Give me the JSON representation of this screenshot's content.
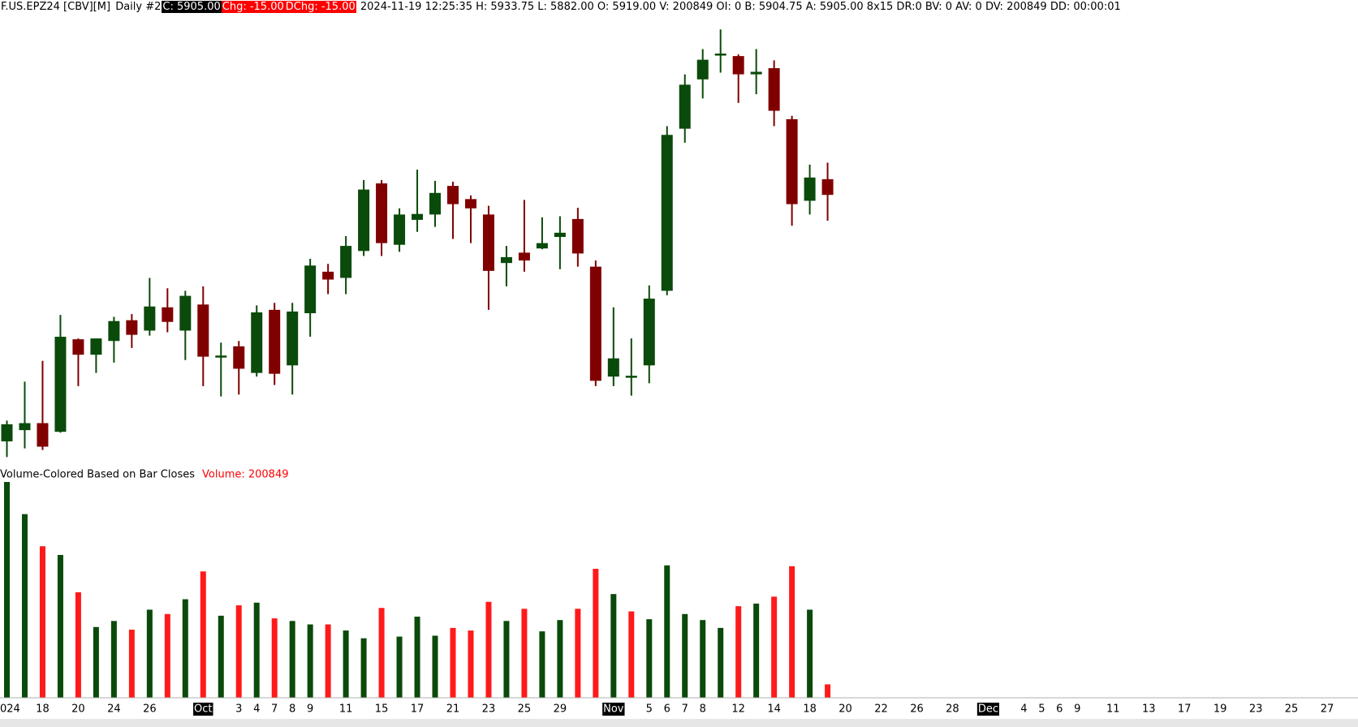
{
  "header": {
    "symbol": "F.US.EPZ24 [CBV][M]",
    "period": "Daily #2",
    "close": "C: 5905.00",
    "change": "Chg: -15.00",
    "dchange": "DChg: -15.00",
    "info": "2024-11-19 12:25:35 H: 5933.75 L: 5882.00 O: 5919.00 V: 200849 OI: 0 B: 5904.75 A: 5905.00 8x15 DR:0 BV: 0 AV: 0 DV: 200849 DD: 00:00:01"
  },
  "chart_data": [
    {
      "type": "candlestick",
      "categories": [
        "024",
        null,
        "18",
        null,
        "20",
        null,
        "24",
        null,
        "26",
        null,
        null,
        "Oct",
        null,
        "3",
        "4",
        "7",
        "8",
        "9",
        null,
        "11",
        null,
        "15",
        null,
        "17",
        null,
        "21",
        null,
        "23",
        null,
        "25",
        null,
        "29",
        null,
        null,
        "Nov",
        null,
        "5",
        "6",
        "7",
        "8",
        null,
        "12",
        null,
        "14",
        null,
        "18",
        null,
        "20",
        null,
        "22",
        null,
        "26",
        null,
        "28",
        null,
        "Dec",
        null,
        "4",
        "5",
        "6",
        "9",
        null,
        "11",
        null,
        "13",
        null,
        "17",
        null,
        "19",
        null,
        "23",
        null,
        "25",
        null,
        "27"
      ],
      "open": [
        5685.25,
        5695.25,
        5701.5,
        5693.75,
        5776.25,
        5762.5,
        5774.75,
        5793.25,
        5784,
        5804.75,
        5784,
        5807.25,
        5761.5,
        5770,
        5746.25,
        5802.5,
        5753,
        5799.5,
        5836.5,
        5831,
        5855,
        5915.25,
        5860.5,
        5882.75,
        5887.5,
        5913,
        5901.25,
        5887.5,
        5844.25,
        5853.5,
        5857.25,
        5867.5,
        5883.5,
        5841,
        5743,
        5742.25,
        5753,
        5819.5,
        5964,
        6008,
        6029.5,
        6028.75,
        6012.5,
        6018,
        5972.5,
        5899.75,
        5919,
        null,
        null,
        null,
        null,
        null,
        null,
        null,
        null,
        null,
        null,
        null,
        null,
        null,
        null,
        null,
        null,
        null,
        null,
        null,
        null,
        null,
        null,
        null,
        null,
        null,
        null,
        null,
        null
      ],
      "high": [
        5703.75,
        5738.5,
        5757,
        5798,
        5777,
        5777,
        5796.25,
        5798.75,
        5831,
        5821.75,
        5819.5,
        5823.5,
        5773.25,
        5774.75,
        5806.5,
        5808.75,
        5808.75,
        5848,
        5843.5,
        5868.25,
        5918.25,
        5918.25,
        5893,
        5927.5,
        5917.5,
        5916.75,
        5904.5,
        5895.25,
        5859.5,
        5900.5,
        5885,
        5886,
        5893.5,
        5846.5,
        5804.75,
        5777,
        5824.25,
        5966.25,
        6012.5,
        6035,
        6052.5,
        6030.25,
        6035,
        6025,
        5975.5,
        5932,
        5933.75,
        null,
        null,
        null,
        null,
        null,
        null,
        null,
        null,
        null,
        null,
        null,
        null,
        null,
        null,
        null,
        null,
        null,
        null,
        null,
        null,
        null,
        null,
        null,
        null,
        null,
        null,
        null,
        null
      ],
      "low": [
        5671.25,
        5679,
        5677.5,
        5693,
        5734.5,
        5746.25,
        5755.5,
        5768.5,
        5779.5,
        5782.5,
        5757.75,
        5734.5,
        5725.25,
        5727,
        5743,
        5735.5,
        5727,
        5778.5,
        5816.5,
        5816.5,
        5850.5,
        5850.5,
        5854.25,
        5872,
        5876.5,
        5865.75,
        5862,
        5802.5,
        5823.5,
        5836.5,
        5856.5,
        5838.75,
        5841,
        5734.5,
        5734.5,
        5726,
        5737,
        5815.5,
        5951.5,
        5991,
        6014,
        5987,
        5994.75,
        5966.25,
        5877.5,
        5887.5,
        5882,
        null,
        null,
        null,
        null,
        null,
        null,
        null,
        null,
        null,
        null,
        null,
        null,
        null,
        null,
        null,
        null,
        null,
        null,
        null,
        null,
        null,
        null,
        null,
        null,
        null,
        null,
        null,
        null
      ],
      "close": [
        5700.5,
        5701.5,
        5680.5,
        5778.5,
        5762.5,
        5777,
        5792.5,
        5780.25,
        5805.5,
        5791.75,
        5815,
        5760.75,
        5761.75,
        5750,
        5800.25,
        5745.5,
        5801,
        5842,
        5829.5,
        5859.5,
        5909.75,
        5862,
        5887.5,
        5888,
        5906.75,
        5896.75,
        5893,
        5837.25,
        5849.5,
        5846.5,
        5862,
        5871.25,
        5852.75,
        5739.25,
        5759.25,
        5743.75,
        5812.5,
        5958.5,
        6003.25,
        6025.5,
        6031,
        6012.5,
        6014.75,
        5980,
        5896.75,
        5920.5,
        5905,
        null,
        null,
        null,
        null,
        null,
        null,
        null,
        null,
        null,
        null,
        null,
        null,
        null,
        null,
        null,
        null,
        null,
        null,
        null,
        null,
        null,
        null,
        null,
        null,
        null,
        null,
        null,
        null
      ],
      "up_color": "#0a4a0a",
      "down_color": "#800000"
    },
    {
      "type": "bar",
      "title": "Volume-Colored Based on Bar Closes",
      "value_label": "Volume: 200849",
      "values": [
        3321000,
        2825000,
        2330000,
        2196000,
        1620000,
        1085000,
        1178000,
        1044000,
        1352000,
        1285000,
        1513000,
        1942000,
        1259000,
        1419000,
        1460000,
        1218000,
        1178000,
        1125000,
        1125000,
        1031000,
        911000,
        1379000,
        937000,
        1245000,
        951000,
        1071000,
        1031000,
        1473000,
        1178000,
        1366000,
        1018000,
        1192000,
        1366000,
        1982000,
        1593000,
        1326000,
        1205000,
        2035000,
        1285000,
        1192000,
        1071000,
        1406000,
        1446000,
        1553000,
        2022000,
        1352000,
        200849,
        null,
        null,
        null,
        null,
        null,
        null,
        null,
        null,
        null,
        null,
        null,
        null,
        null,
        null,
        null,
        null,
        null,
        null,
        null,
        null,
        null,
        null,
        null,
        null,
        null,
        null,
        null,
        null
      ],
      "up_color": "#0a4a0a",
      "down_color": "#ff1a1a"
    }
  ]
}
